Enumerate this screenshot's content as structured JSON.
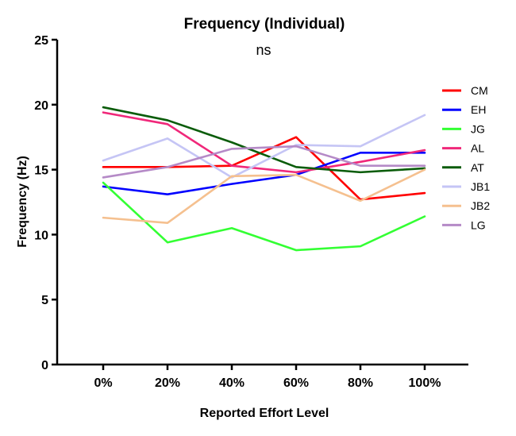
{
  "chart_data": {
    "type": "line",
    "title": "Frequency (Individual)",
    "annotation": "ns",
    "xlabel": "Reported Effort Level",
    "ylabel": "Frequency (Hz)",
    "categories": [
      "0%",
      "20%",
      "40%",
      "60%",
      "80%",
      "100%"
    ],
    "ylim": [
      0,
      25
    ],
    "yticks": [
      "0",
      "5",
      "10",
      "15",
      "20",
      "25"
    ],
    "grid": false,
    "legend_position": "right",
    "series": [
      {
        "name": "CM",
        "color": "#ff0000",
        "values": [
          15.2,
          15.2,
          15.3,
          17.5,
          12.7,
          13.2
        ]
      },
      {
        "name": "EH",
        "color": "#0000ff",
        "values": [
          13.7,
          13.1,
          13.9,
          14.6,
          16.3,
          16.3
        ]
      },
      {
        "name": "JG",
        "color": "#33ff33",
        "values": [
          14.0,
          9.4,
          10.5,
          8.8,
          9.1,
          11.4
        ]
      },
      {
        "name": "AL",
        "color": "#f0287a",
        "values": [
          19.4,
          18.5,
          15.3,
          14.8,
          15.6,
          16.5
        ]
      },
      {
        "name": "AT",
        "color": "#0a5c0a",
        "values": [
          19.8,
          18.8,
          17.1,
          15.2,
          14.8,
          15.1
        ]
      },
      {
        "name": "JB1",
        "color": "#c5c5f5",
        "values": [
          15.7,
          17.4,
          14.4,
          16.9,
          16.8,
          19.2
        ]
      },
      {
        "name": "JB2",
        "color": "#f5c08f",
        "values": [
          11.3,
          10.9,
          14.5,
          14.6,
          12.6,
          15.0
        ]
      },
      {
        "name": "LG",
        "color": "#b58ac7",
        "values": [
          14.4,
          15.2,
          16.6,
          16.8,
          15.3,
          15.3
        ]
      }
    ]
  }
}
